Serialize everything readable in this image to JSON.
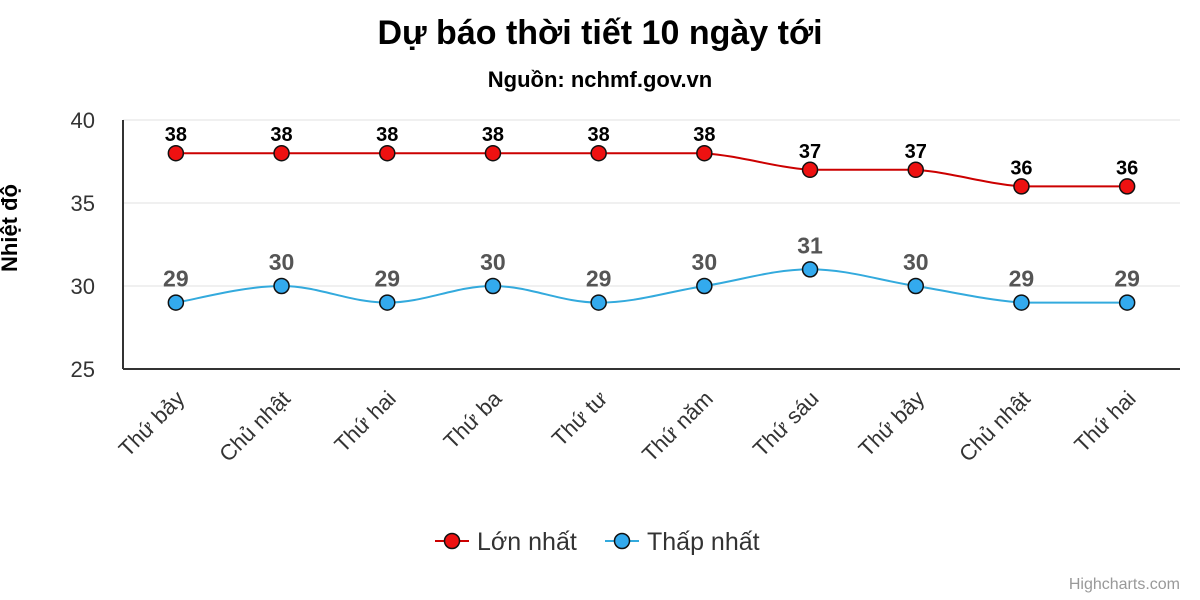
{
  "chart_data": {
    "type": "line",
    "title": "Dự báo thời tiết 10 ngày tới",
    "subtitle": "Nguồn: nchmf.gov.vn",
    "ylabel": "Nhiệt độ",
    "xlabel": "",
    "ylim": [
      25,
      40
    ],
    "yticks": [
      25,
      30,
      35,
      40
    ],
    "grid": true,
    "legend_position": "bottom",
    "categories": [
      "Thứ bảy",
      "Chủ nhật",
      "Thứ hai",
      "Thứ ba",
      "Thứ tư",
      "Thứ năm",
      "Thứ sáu",
      "Thứ bảy",
      "Chủ nhật",
      "Thứ hai"
    ],
    "series": [
      {
        "name": "Lớn nhất",
        "color": "#cc0000",
        "marker_color": "#ee1111",
        "label_color": "#000000",
        "values": [
          38,
          38,
          38,
          38,
          38,
          38,
          37,
          37,
          36,
          36
        ]
      },
      {
        "name": "Thấp nhất",
        "color": "#33aadd",
        "marker_color": "#33aaee",
        "label_color": "#555555",
        "values": [
          29,
          30,
          29,
          30,
          29,
          30,
          31,
          30,
          29,
          29
        ]
      }
    ]
  },
  "credits": "Highcharts.com"
}
